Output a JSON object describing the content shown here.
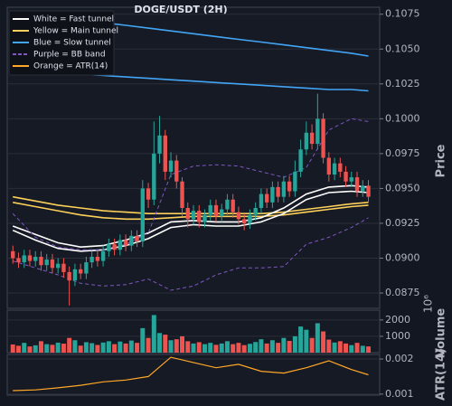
{
  "chart_data": [
    {
      "type": "candlestick",
      "title": "DOGE/USDT (2H)",
      "ylabel": "Price",
      "xlim": [
        -1,
        65
      ],
      "ylim": [
        0.0864,
        0.108
      ],
      "yticks": [
        0.0875,
        {
          "value": 0.09,
          "label": "0.0900"
        },
        0.0925,
        {
          "value": 0.095,
          "label": "0.0950"
        },
        0.0975,
        {
          "value": 0.1,
          "label": "0.1000"
        },
        0.1025,
        {
          "value": 0.105,
          "label": "0.1050"
        },
        0.1075
      ],
      "grid": true,
      "up_color": "#26a69a",
      "down_color": "#ef5350",
      "legend": "upper left",
      "open": [
        0.0905,
        0.09,
        0.0897,
        0.0902,
        0.0898,
        0.0901,
        0.0895,
        0.0899,
        0.0893,
        0.0896,
        0.089,
        0.0884,
        0.0892,
        0.0889,
        0.0897,
        0.0901,
        0.0898,
        0.0905,
        0.091,
        0.0906,
        0.0913,
        0.0909,
        0.0916,
        0.0912,
        0.095,
        0.0942,
        0.0975,
        0.0988,
        0.0962,
        0.097,
        0.0955,
        0.0936,
        0.0928,
        0.0934,
        0.0926,
        0.0931,
        0.0938,
        0.093,
        0.0935,
        0.0942,
        0.0933,
        0.0928,
        0.0925,
        0.0931,
        0.0936,
        0.0946,
        0.094,
        0.0951,
        0.0944,
        0.0955,
        0.0948,
        0.0962,
        0.0978,
        0.099,
        0.0982,
        0.1,
        0.0972,
        0.096,
        0.0968,
        0.0962,
        0.0955,
        0.0958,
        0.0948,
        0.0952
      ],
      "high": [
        0.0909,
        0.0904,
        0.0906,
        0.0906,
        0.0905,
        0.0905,
        0.0903,
        0.0903,
        0.09,
        0.09,
        0.0894,
        0.0896,
        0.0896,
        0.0901,
        0.0905,
        0.0905,
        0.0909,
        0.0914,
        0.0914,
        0.0917,
        0.0917,
        0.092,
        0.092,
        0.0956,
        0.0954,
        0.0998,
        0.1002,
        0.0992,
        0.0976,
        0.0974,
        0.0958,
        0.094,
        0.0938,
        0.0938,
        0.0935,
        0.0942,
        0.0942,
        0.0939,
        0.0946,
        0.0946,
        0.0937,
        0.0932,
        0.0935,
        0.094,
        0.095,
        0.095,
        0.0955,
        0.0955,
        0.0959,
        0.0959,
        0.097,
        0.0985,
        0.0998,
        0.0996,
        0.1018,
        0.1004,
        0.0976,
        0.0972,
        0.0972,
        0.0966,
        0.0962,
        0.0962,
        0.0956,
        0.0956
      ],
      "low": [
        0.0896,
        0.0893,
        0.0893,
        0.0894,
        0.0894,
        0.0891,
        0.0891,
        0.0889,
        0.0889,
        0.0886,
        0.0866,
        0.088,
        0.0885,
        0.0885,
        0.0893,
        0.0894,
        0.0894,
        0.0901,
        0.0902,
        0.0902,
        0.0905,
        0.0905,
        0.0908,
        0.0908,
        0.0936,
        0.0938,
        0.0968,
        0.0956,
        0.0958,
        0.095,
        0.093,
        0.0922,
        0.0924,
        0.0922,
        0.0922,
        0.0927,
        0.0926,
        0.0926,
        0.0931,
        0.0929,
        0.0924,
        0.092,
        0.0921,
        0.0927,
        0.0932,
        0.0936,
        0.0936,
        0.094,
        0.094,
        0.0944,
        0.0944,
        0.0958,
        0.0974,
        0.0978,
        0.0978,
        0.0968,
        0.0955,
        0.0956,
        0.0958,
        0.0951,
        0.0951,
        0.0944,
        0.0944,
        0.094
      ],
      "close": [
        0.09,
        0.0897,
        0.0902,
        0.0898,
        0.0901,
        0.0895,
        0.0899,
        0.0893,
        0.0896,
        0.089,
        0.0884,
        0.0892,
        0.0889,
        0.0897,
        0.0901,
        0.0898,
        0.0905,
        0.091,
        0.0906,
        0.0913,
        0.0909,
        0.0916,
        0.0912,
        0.095,
        0.0942,
        0.0975,
        0.0988,
        0.0962,
        0.097,
        0.0955,
        0.0936,
        0.0928,
        0.0934,
        0.0926,
        0.0931,
        0.0938,
        0.093,
        0.0935,
        0.0942,
        0.0933,
        0.0928,
        0.0925,
        0.0931,
        0.0936,
        0.0946,
        0.094,
        0.0951,
        0.0944,
        0.0955,
        0.0948,
        0.0962,
        0.0978,
        0.099,
        0.0982,
        0.1,
        0.0972,
        0.096,
        0.0968,
        0.0962,
        0.0955,
        0.0958,
        0.0948,
        0.0952,
        0.0944
      ],
      "bands": [
        {
          "name": "Blue = Slow tunnel",
          "color": "#42a5f5",
          "x": [
            0,
            4,
            8,
            12,
            16,
            20,
            24,
            28,
            32,
            36,
            40,
            44,
            48,
            52,
            56,
            60,
            63
          ],
          "upper": [
            0.1075,
            0.1074,
            0.1073,
            0.1071,
            0.1069,
            0.1067,
            0.1065,
            0.1063,
            0.1061,
            0.1059,
            0.1057,
            0.1055,
            0.1053,
            0.1051,
            0.1049,
            0.1047,
            0.1045
          ],
          "lower": [
            0.1038,
            0.1036,
            0.1034,
            0.1032,
            0.1031,
            0.103,
            0.1029,
            0.1028,
            0.1027,
            0.1026,
            0.1025,
            0.1024,
            0.1023,
            0.1022,
            0.1021,
            0.1021,
            0.102
          ]
        },
        {
          "name": "Yellow = Main tunnel",
          "color": "#fdd05a",
          "x": [
            0,
            4,
            8,
            12,
            16,
            20,
            24,
            28,
            32,
            36,
            40,
            44,
            48,
            52,
            56,
            60,
            63
          ],
          "upper": [
            0.0944,
            0.0941,
            0.0938,
            0.0936,
            0.0934,
            0.0933,
            0.0932,
            0.0932,
            0.0932,
            0.0932,
            0.0932,
            0.0932,
            0.0933,
            0.0935,
            0.0937,
            0.0939,
            0.094
          ],
          "lower": [
            0.094,
            0.0937,
            0.0934,
            0.0931,
            0.0929,
            0.0928,
            0.0928,
            0.0929,
            0.093,
            0.093,
            0.093,
            0.093,
            0.0931,
            0.0933,
            0.0935,
            0.0937,
            0.0938
          ]
        },
        {
          "name": "White = Fast tunnel",
          "color": "#ffffff",
          "x": [
            0,
            4,
            8,
            12,
            16,
            20,
            24,
            28,
            32,
            36,
            40,
            44,
            48,
            52,
            56,
            60,
            63
          ],
          "upper": [
            0.0923,
            0.0917,
            0.0911,
            0.0908,
            0.0909,
            0.0913,
            0.0918,
            0.0926,
            0.0927,
            0.0926,
            0.0926,
            0.0929,
            0.0936,
            0.0946,
            0.0951,
            0.0952,
            0.0951
          ],
          "lower": [
            0.092,
            0.0913,
            0.0907,
            0.0905,
            0.0906,
            0.0909,
            0.0914,
            0.0922,
            0.0924,
            0.0923,
            0.0923,
            0.0926,
            0.0932,
            0.0942,
            0.0947,
            0.0948,
            0.0947
          ]
        },
        {
          "name": "Purple = BB band",
          "color": "#7e57c2",
          "dash": true,
          "x": [
            0,
            4,
            8,
            12,
            16,
            20,
            24,
            28,
            32,
            36,
            40,
            44,
            48,
            52,
            56,
            60,
            63
          ],
          "upper": [
            0.0932,
            0.0915,
            0.0908,
            0.0906,
            0.0906,
            0.091,
            0.0918,
            0.096,
            0.0966,
            0.0967,
            0.0966,
            0.0962,
            0.0958,
            0.0965,
            0.0992,
            0.1,
            0.0998
          ],
          "lower": [
            0.0898,
            0.0893,
            0.0888,
            0.0882,
            0.088,
            0.0881,
            0.0885,
            0.0877,
            0.088,
            0.0888,
            0.0893,
            0.0893,
            0.0894,
            0.091,
            0.0915,
            0.0922,
            0.0929
          ]
        }
      ]
    },
    {
      "type": "bar",
      "ylabel": "Volume",
      "offset_label": "10⁶",
      "ylim": [
        0,
        2600
      ],
      "yticks": [
        1000,
        2000
      ],
      "values": [
        500,
        420,
        600,
        380,
        450,
        700,
        520,
        480,
        610,
        550,
        900,
        760,
        430,
        640,
        580,
        470,
        620,
        700,
        520,
        680,
        560,
        740,
        600,
        1500,
        900,
        2300,
        1200,
        1100,
        760,
        820,
        1000,
        700,
        560,
        640,
        520,
        600,
        480,
        560,
        700,
        520,
        600,
        460,
        540,
        650,
        820,
        560,
        760,
        600,
        900,
        720,
        1000,
        1600,
        1400,
        900,
        1800,
        1300,
        800,
        620,
        700,
        560,
        460,
        600,
        420,
        380
      ]
    },
    {
      "type": "line",
      "ylabel": "ATR(14)",
      "ylim": [
        0.00097,
        0.00213
      ],
      "yticks": [
        0.002,
        0.001
      ],
      "series": [
        {
          "name": "Orange = ATR(14)",
          "color": "#ffa726",
          "x": [
            0,
            4,
            8,
            12,
            16,
            20,
            24,
            28,
            32,
            36,
            40,
            44,
            48,
            52,
            56,
            60,
            63
          ],
          "values": [
            0.0011,
            0.00112,
            0.00118,
            0.00125,
            0.00135,
            0.0014,
            0.0015,
            0.00205,
            0.0019,
            0.00175,
            0.00185,
            0.00165,
            0.0016,
            0.00175,
            0.00195,
            0.0017,
            0.00155
          ]
        }
      ]
    }
  ]
}
